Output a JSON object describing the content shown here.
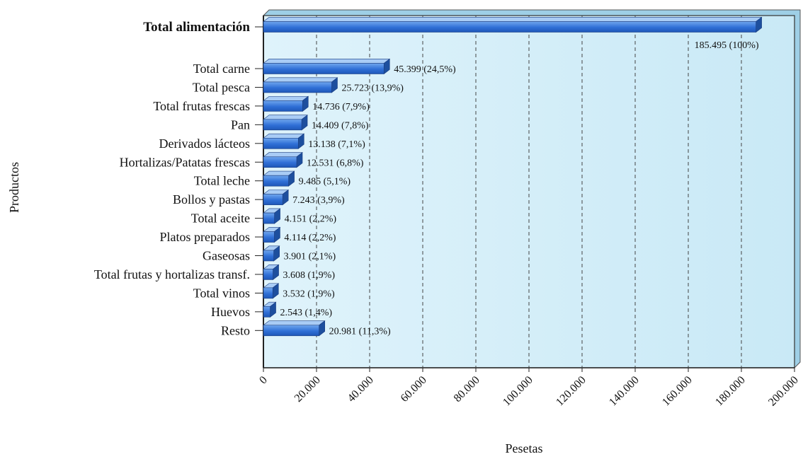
{
  "chart_data": {
    "type": "bar",
    "orientation": "horizontal",
    "title": "",
    "xlabel": "Pesetas",
    "ylabel": "Productos",
    "xlim": [
      0,
      200000
    ],
    "grid": "vertical dashed",
    "legend": "none",
    "categories": [
      "Total alimentación",
      "Total carne",
      "Total pesca",
      "Total frutas frescas",
      "Pan",
      "Derivados lácteos",
      "Hortalizas/Patatas frescas",
      "Total leche",
      "Bollos y pastas",
      "Total aceite",
      "Platos preparados",
      "Gaseosas",
      "Total frutas y hortalizas transf.",
      "Total vinos",
      "Huevos",
      "Resto"
    ],
    "values": [
      185495,
      45399,
      25723,
      14736,
      14409,
      13138,
      12531,
      9485,
      7243,
      4151,
      4114,
      3901,
      3608,
      3532,
      2543,
      20981
    ],
    "data_labels": [
      "185.495 (100%)",
      "45.399 (24,5%)",
      "25.723 (13,9%)",
      "14.736 (7,9%)",
      "14.409 (7,8%)",
      "13.138 (7,1%)",
      "12.531 (6,8%)",
      "9.485 (5,1%)",
      "7.243 (3,9%)",
      "4.151 (2,2%)",
      "4.114 (2,2%)",
      "3.901 (2,1%)",
      "3.608 (1,9%)",
      "3.532 (1,9%)",
      "2.543 (1,4%)",
      "20.981 (11,3%)"
    ],
    "x_ticks": [
      "0",
      "20.000",
      "40.000",
      "60.000",
      "80.000",
      "100.000",
      "120.000",
      "140.000",
      "160.000",
      "180.000",
      "200.000"
    ],
    "x_tick_values": [
      0,
      20000,
      40000,
      60000,
      80000,
      100000,
      120000,
      140000,
      160000,
      180000,
      200000
    ],
    "colors": {
      "bar_front": "#2f6fd6",
      "bar_top": "#a9ccf5",
      "bar_side": "#1d4f9e",
      "plot_background": "#e4f4fb",
      "plot_wall": "#9ecfe6",
      "grid": "#444444"
    }
  }
}
